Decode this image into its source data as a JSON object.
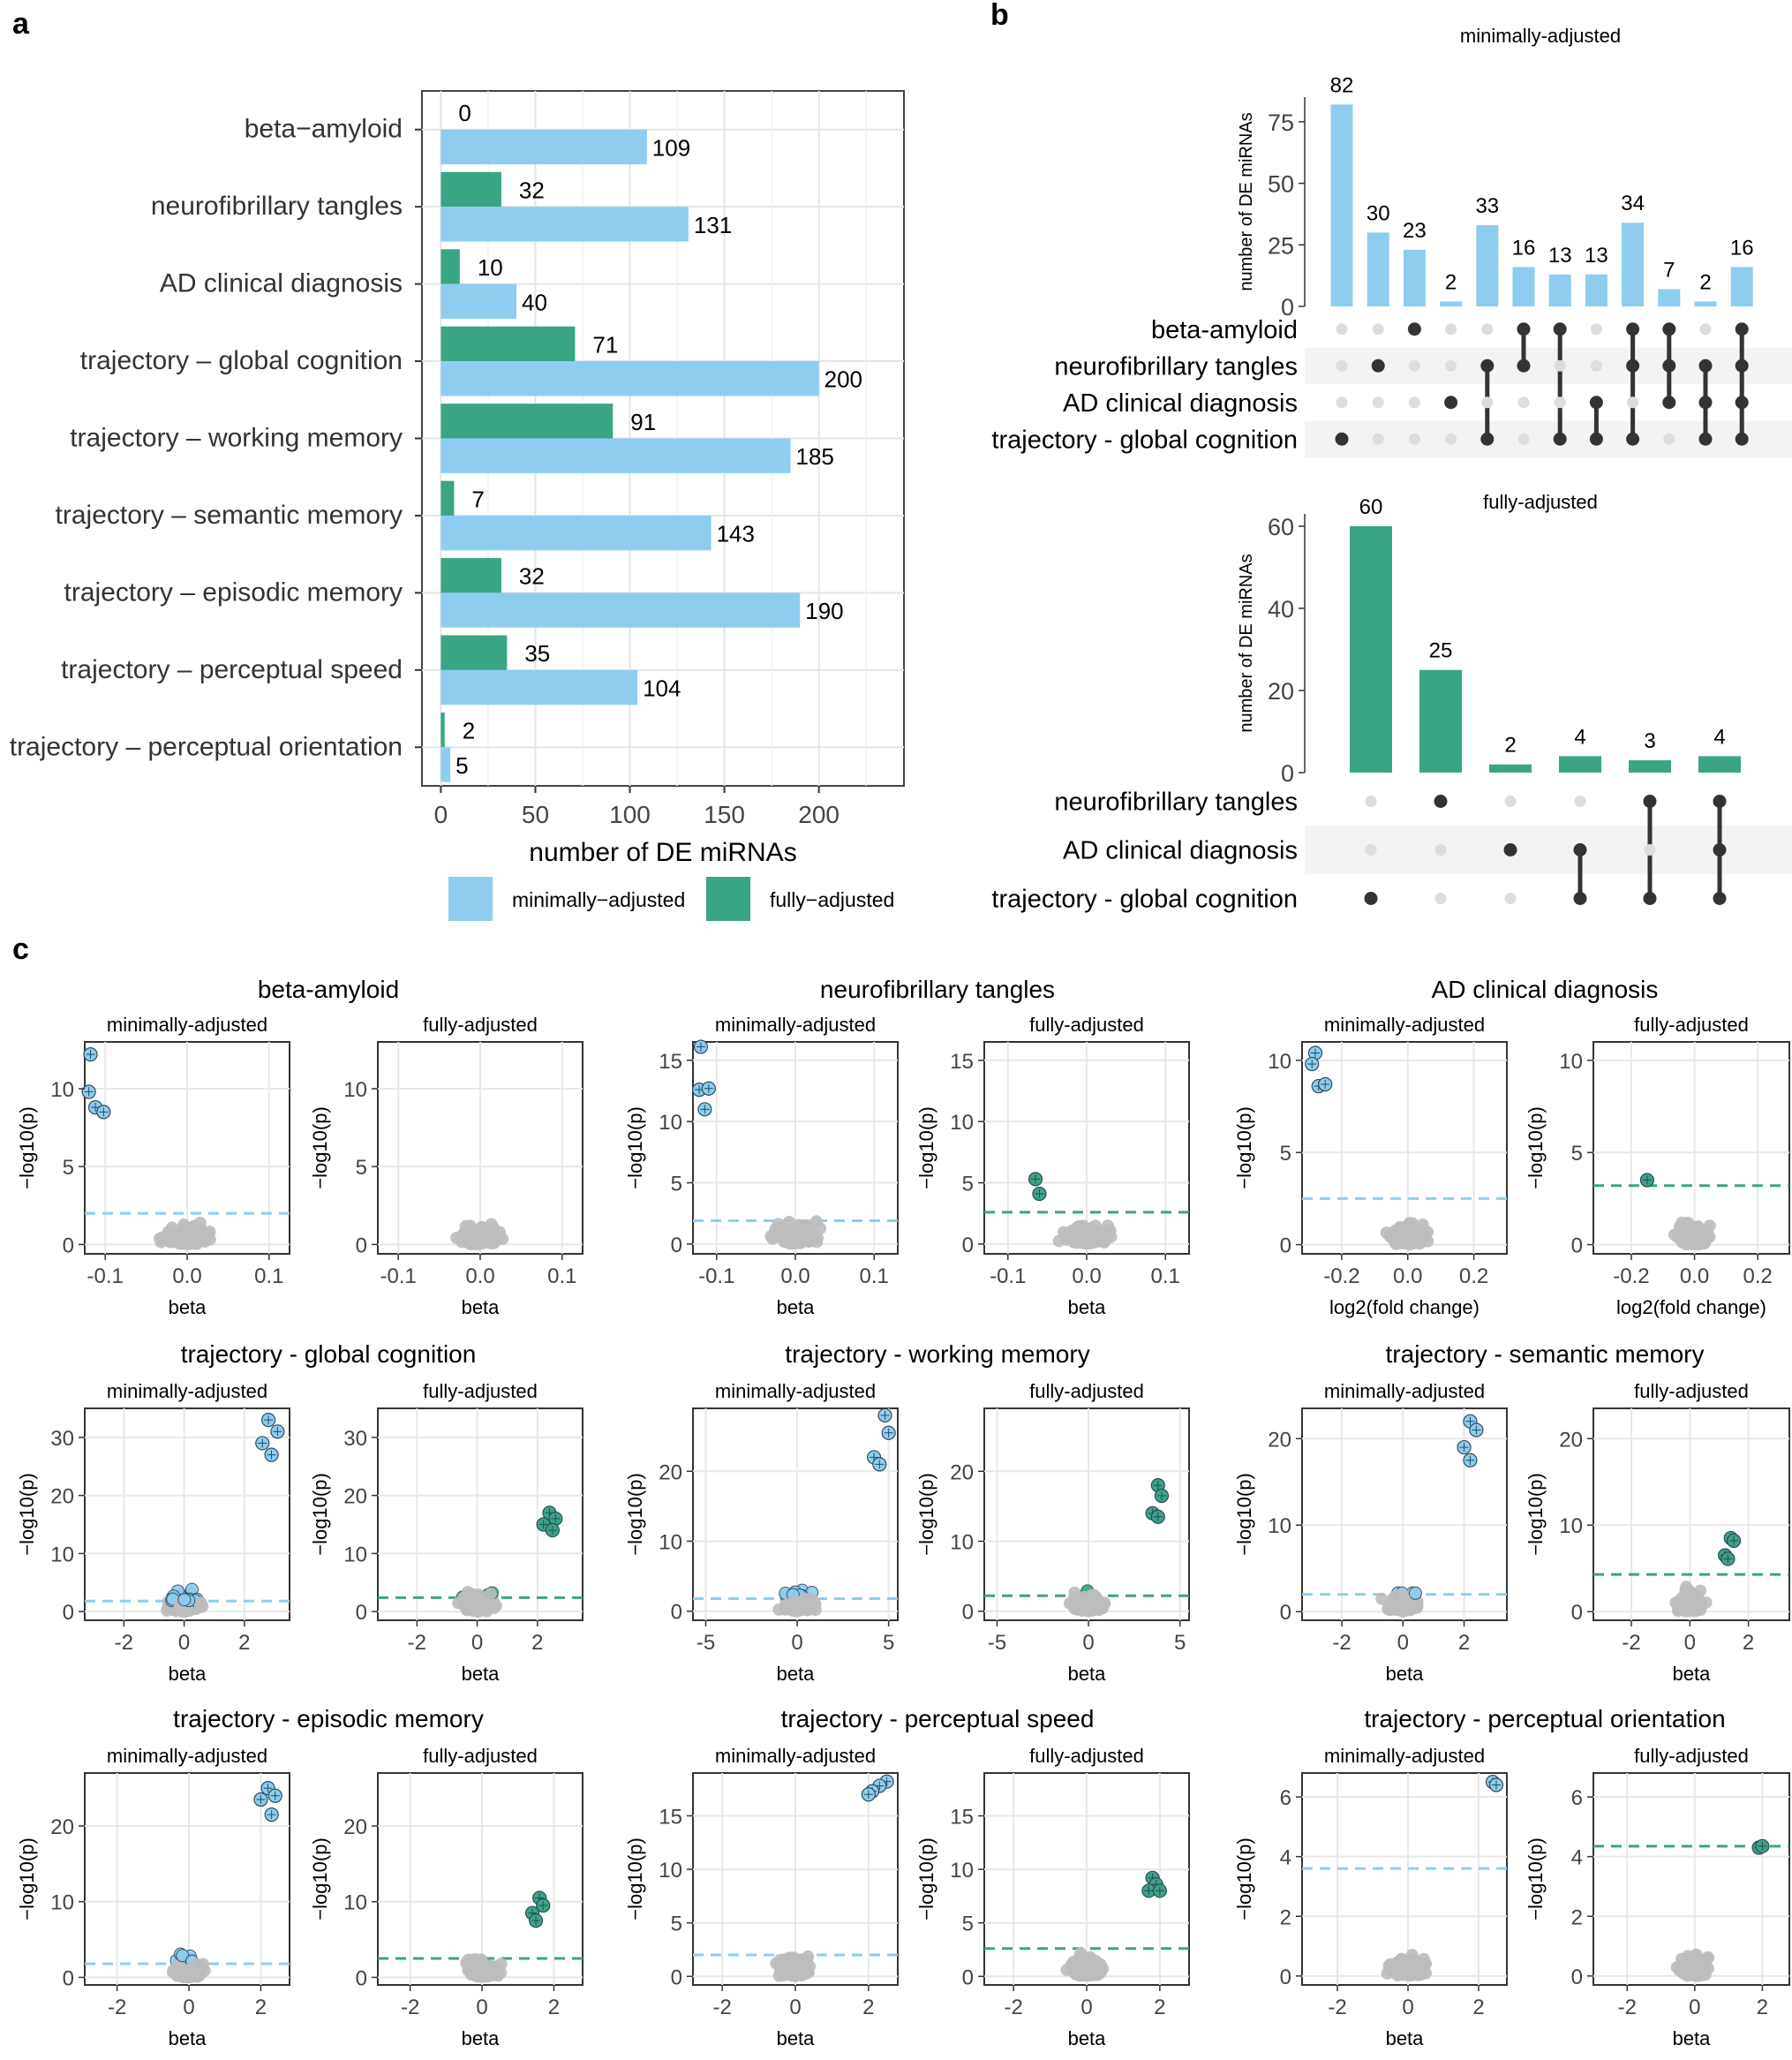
{
  "colors": {
    "minimal": "#8ecdf0",
    "full": "#3aa585",
    "grey": "#bdbdbd",
    "panel": "#ebebeb",
    "dot_on": "#333333",
    "dot_off": "#dddddd"
  },
  "panel_labels": {
    "a": "a",
    "b": "b",
    "c": "c"
  },
  "chart_data": [
    {
      "type": "bar",
      "panel": "a",
      "orientation": "horizontal",
      "categories": [
        "beta−amyloid",
        "neurofibrillary tangles",
        "AD clinical diagnosis",
        "trajectory – global cognition",
        "trajectory – working memory",
        "trajectory – semantic memory",
        "trajectory – episodic memory",
        "trajectory – perceptual speed",
        "trajectory – perceptual orientation"
      ],
      "series": [
        {
          "name": "minimally−adjusted",
          "values": [
            109,
            131,
            40,
            200,
            185,
            143,
            190,
            104,
            5
          ]
        },
        {
          "name": "fully−adjusted",
          "values": [
            0,
            32,
            10,
            71,
            91,
            7,
            32,
            35,
            2
          ]
        }
      ],
      "xlabel": "number of DE miRNAs",
      "xlim": [
        -10,
        245
      ],
      "xticks": [
        0,
        50,
        100,
        150,
        200
      ],
      "grid": true,
      "legend": "bottom"
    },
    {
      "type": "bar",
      "panel": "b",
      "subtype": "upset",
      "title": "minimally-adjusted",
      "ylabel": "number of DE miRNAs",
      "ylim": [
        0,
        85
      ],
      "yticks": [
        0,
        25,
        50,
        75
      ],
      "sets": [
        "beta-amyloid",
        "neurofibrillary tangles",
        "AD clinical diagnosis",
        "trajectory - global cognition"
      ],
      "values": [
        82,
        30,
        23,
        2,
        33,
        16,
        13,
        13,
        34,
        7,
        2,
        16
      ],
      "membership": [
        [
          3
        ],
        [
          1
        ],
        [
          0
        ],
        [
          2
        ],
        [
          1,
          3
        ],
        [
          0,
          1
        ],
        [
          0,
          3
        ],
        [
          2,
          3
        ],
        [
          0,
          1,
          3
        ],
        [
          0,
          1,
          2
        ],
        [
          1,
          2,
          3
        ],
        [
          0,
          1,
          2,
          3
        ]
      ]
    },
    {
      "type": "bar",
      "panel": "b",
      "subtype": "upset",
      "title": "fully-adjusted",
      "ylabel": "number of DE miRNAs",
      "ylim": [
        0,
        63
      ],
      "yticks": [
        0,
        20,
        40,
        60
      ],
      "sets": [
        "neurofibrillary tangles",
        "AD clinical diagnosis",
        "trajectory - global cognition"
      ],
      "values": [
        60,
        25,
        2,
        4,
        3,
        4
      ],
      "membership": [
        [
          2
        ],
        [
          0
        ],
        [
          1
        ],
        [
          1,
          2
        ],
        [
          0,
          2
        ],
        [
          0,
          1,
          2
        ]
      ]
    },
    {
      "type": "scatter",
      "panel": "c",
      "subtitles": [
        "minimally-adjusted",
        "fully-adjusted"
      ],
      "ylabel": "−log10(p)",
      "plots": [
        {
          "title": "beta-amyloid",
          "xlabel": "beta",
          "xlim": [
            -0.125,
            0.125
          ],
          "xticks": [
            -0.1,
            0.0,
            0.1
          ],
          "xtick_labels": [
            "-0.1",
            "0.0",
            "0.1"
          ],
          "ylim": [
            -0.6,
            13
          ],
          "yticks": [
            0,
            5,
            10
          ],
          "thr": [
            2.0,
            null
          ],
          "spread": 0.06,
          "peak": 7.5,
          "hi": [
            [
              -0.118,
              12.2
            ],
            [
              -0.12,
              9.8
            ],
            [
              -0.112,
              8.8
            ],
            [
              -0.102,
              8.5
            ]
          ],
          "hi_full": []
        },
        {
          "title": "neurofibrillary tangles",
          "xlabel": "beta",
          "xlim": [
            -0.13,
            0.13
          ],
          "xticks": [
            -0.1,
            0.0,
            0.1
          ],
          "xtick_labels": [
            "-0.1",
            "0.0",
            "0.1"
          ],
          "ylim": [
            -0.8,
            16.5
          ],
          "yticks": [
            0,
            5,
            10,
            15
          ],
          "thr": [
            1.9,
            2.6
          ],
          "spread": 0.06,
          "peak": 9,
          "hi": [
            [
              -0.12,
              16.1
            ],
            [
              -0.122,
              12.6
            ],
            [
              -0.11,
              12.7
            ],
            [
              -0.115,
              11.0
            ]
          ],
          "hi_full": [
            [
              -0.065,
              5.3
            ],
            [
              -0.06,
              4.1
            ]
          ]
        },
        {
          "title": "AD clinical diagnosis",
          "xlabel": "log2(fold change)",
          "xlim": [
            -0.32,
            0.3
          ],
          "xticks": [
            -0.2,
            0.0,
            0.2
          ],
          "xtick_labels": [
            "-0.2",
            "0.0",
            "0.2"
          ],
          "ylim": [
            -0.5,
            11
          ],
          "yticks": [
            0,
            5,
            10
          ],
          "thr": [
            2.5,
            3.2
          ],
          "spread": 0.12,
          "peak": 7,
          "hi": [
            [
              -0.28,
              10.4
            ],
            [
              -0.29,
              9.8
            ],
            [
              -0.27,
              8.6
            ],
            [
              -0.25,
              8.7
            ]
          ],
          "hi_full": [
            [
              -0.15,
              3.5
            ]
          ]
        },
        {
          "title": "trajectory - global cognition",
          "xlabel": "beta",
          "xlim": [
            -3.3,
            3.5
          ],
          "xticks": [
            -2,
            0,
            2
          ],
          "xtick_labels": [
            "-2",
            "0",
            "2"
          ],
          "ylim": [
            -1.5,
            35
          ],
          "yticks": [
            0,
            10,
            20,
            30
          ],
          "thr": [
            1.8,
            2.4
          ],
          "spread": 1.2,
          "peak": 13,
          "hi": [
            [
              2.8,
              33
            ],
            [
              3.1,
              31
            ],
            [
              2.6,
              29
            ],
            [
              2.9,
              27
            ]
          ],
          "hi_full": [
            [
              2.2,
              15
            ],
            [
              2.4,
              17
            ],
            [
              2.6,
              16
            ],
            [
              2.5,
              14
            ]
          ]
        },
        {
          "title": "trajectory - working memory",
          "xlabel": "beta",
          "xlim": [
            -5.7,
            5.5
          ],
          "xticks": [
            -5,
            0,
            5
          ],
          "xtick_labels": [
            "-5",
            "0",
            "5"
          ],
          "ylim": [
            -1.3,
            29
          ],
          "yticks": [
            0,
            10,
            20
          ],
          "thr": [
            1.8,
            2.2
          ],
          "spread": 2,
          "peak": 12,
          "hi": [
            [
              4.8,
              28
            ],
            [
              5.0,
              25.5
            ],
            [
              4.2,
              22
            ],
            [
              4.5,
              21
            ]
          ],
          "hi_full": [
            [
              3.8,
              18
            ],
            [
              4.0,
              16.5
            ],
            [
              3.5,
              14
            ],
            [
              3.8,
              13.5
            ]
          ]
        },
        {
          "title": "trajectory - semantic memory",
          "xlabel": "beta",
          "xlim": [
            -3.3,
            3.4
          ],
          "xticks": [
            -2,
            0,
            2
          ],
          "xtick_labels": [
            "-2",
            "0",
            "2"
          ],
          "ylim": [
            -1,
            23.5
          ],
          "yticks": [
            0,
            10,
            20
          ],
          "thr": [
            2.0,
            4.3
          ],
          "spread": 1.1,
          "peak": 12,
          "hi": [
            [
              2.2,
              22
            ],
            [
              2.4,
              21
            ],
            [
              2.0,
              19
            ],
            [
              2.2,
              17.5
            ]
          ],
          "hi_full": [
            [
              1.4,
              8.5
            ],
            [
              1.5,
              8.2
            ],
            [
              1.2,
              6.5
            ],
            [
              1.3,
              6.1
            ]
          ]
        },
        {
          "title": "trajectory - episodic memory",
          "xlabel": "beta",
          "xlim": [
            -2.9,
            2.8
          ],
          "xticks": [
            -2,
            0,
            2
          ],
          "xtick_labels": [
            "-2",
            "0",
            "2"
          ],
          "ylim": [
            -1,
            27
          ],
          "yticks": [
            0,
            10,
            20
          ],
          "thr": [
            1.8,
            2.5
          ],
          "spread": 1.0,
          "peak": 15,
          "hi": [
            [
              2.2,
              25
            ],
            [
              2.4,
              24
            ],
            [
              2.0,
              23.5
            ],
            [
              2.3,
              21.5
            ]
          ],
          "hi_full": [
            [
              1.6,
              10.5
            ],
            [
              1.7,
              9.5
            ],
            [
              1.4,
              8.5
            ],
            [
              1.5,
              7.5
            ]
          ]
        },
        {
          "title": "trajectory - perceptual speed",
          "xlabel": "beta",
          "xlim": [
            -2.8,
            2.8
          ],
          "xticks": [
            -2,
            0,
            2
          ],
          "xtick_labels": [
            "-2",
            "0",
            "2"
          ],
          "ylim": [
            -0.8,
            19
          ],
          "yticks": [
            0,
            5,
            10,
            15
          ],
          "thr": [
            2.0,
            2.6
          ],
          "spread": 1.0,
          "peak": 10,
          "hi": [
            [
              2.5,
              18.2
            ],
            [
              2.3,
              17.8
            ],
            [
              2.1,
              17.3
            ],
            [
              2.0,
              17.0
            ]
          ],
          "hi_full": [
            [
              1.8,
              9.2
            ],
            [
              1.9,
              8.6
            ],
            [
              1.7,
              8.0
            ],
            [
              2.0,
              8.0
            ]
          ]
        },
        {
          "title": "trajectory - perceptual orientation",
          "xlabel": "beta",
          "xlim": [
            -3.0,
            2.8
          ],
          "xticks": [
            -2,
            0,
            2
          ],
          "xtick_labels": [
            "-2",
            "0",
            "2"
          ],
          "ylim": [
            -0.3,
            6.8
          ],
          "yticks": [
            0,
            2,
            4,
            6
          ],
          "thr": [
            3.6,
            4.35
          ],
          "spread": 1.0,
          "peak": 3.5,
          "hi": [
            [
              2.4,
              6.5
            ],
            [
              2.5,
              6.4
            ]
          ],
          "hi_full": [
            [
              1.9,
              4.3
            ],
            [
              2.0,
              4.35
            ]
          ]
        }
      ]
    }
  ]
}
